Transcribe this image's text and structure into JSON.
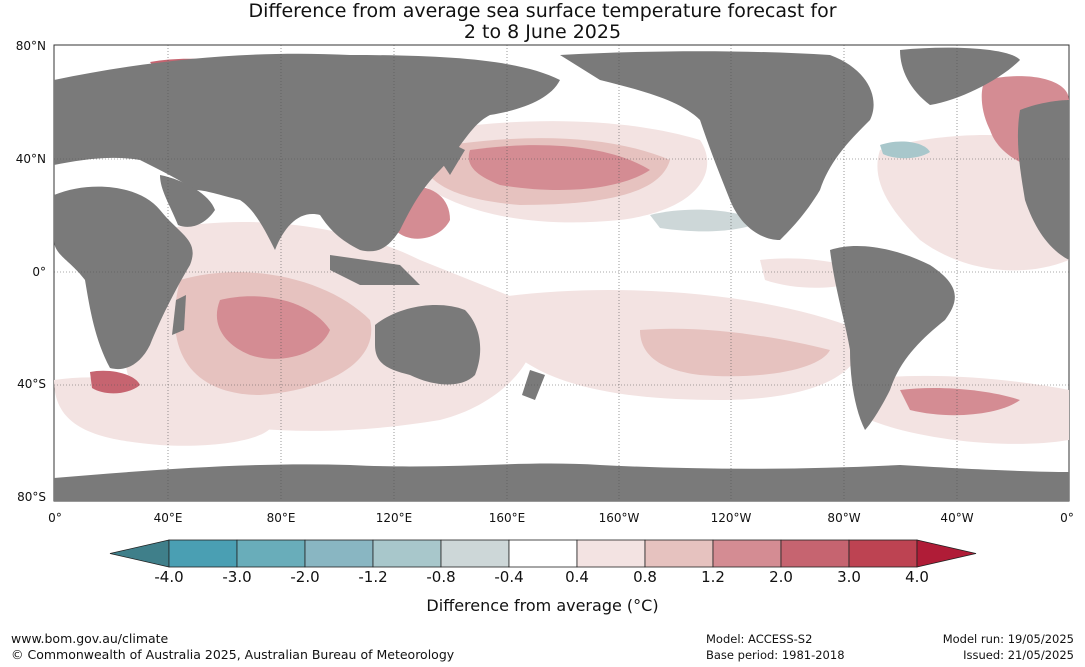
{
  "title_line1": "Difference from average sea surface temperature forecast for",
  "title_line2": "2 to 8 June 2025",
  "lat_labels": [
    "80°N",
    "40°N",
    "0°",
    "40°S",
    "80°S"
  ],
  "lon_labels": [
    "0°",
    "40°E",
    "80°E",
    "120°E",
    "160°E",
    "160°W",
    "120°W",
    "80°W",
    "40°W",
    "0°"
  ],
  "colorbar": {
    "ticks": [
      "-4.0",
      "-3.0",
      "-2.0",
      "-1.2",
      "-0.8",
      "-0.4",
      "0.4",
      "0.8",
      "1.2",
      "2.0",
      "3.0",
      "4.0"
    ],
    "colors": [
      "#3f7f8a",
      "#4a9fb3",
      "#69adba",
      "#89b6c2",
      "#a8c7cb",
      "#cdd7d8",
      "#ffffff",
      "#f3e3e2",
      "#e6c2bf",
      "#d48c93",
      "#c66470",
      "#bd4352",
      "#b01c37"
    ],
    "title": "Difference from average (°C)"
  },
  "land_color": "#7a7a7a",
  "footer": {
    "url": "www.bom.gov.au/climate",
    "copyright": "© Commonwealth of Australia 2025, Australian Bureau of Meteorology",
    "model": "Model: ACCESS-S2",
    "base_period": "Base period: 1981-2018",
    "model_run": "Model run: 19/05/2025",
    "issued": "Issued: 21/05/2025"
  }
}
